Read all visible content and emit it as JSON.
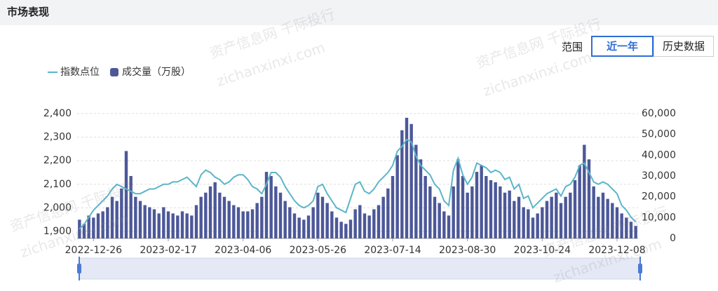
{
  "header": {
    "title": "市场表现"
  },
  "controls": {
    "label": "范围",
    "tabs": [
      "近一年",
      "历史数据"
    ],
    "active": 0
  },
  "watermarks": [
    "资产信息网 千际投行",
    "zichanxinxi.com",
    "资产信息网 千际投行",
    "zichanxinxi.com",
    "资产信息网 千际投行",
    "zichanxinxi.com",
    "资产信息网 千际投行",
    "zichanxinxi.com"
  ],
  "chart_data": {
    "type": "combo",
    "categories": [
      null,
      null,
      null,
      "2022-12-26",
      null,
      null,
      null,
      null,
      null,
      null,
      null,
      null,
      null,
      null,
      null,
      null,
      null,
      null,
      null,
      "2023-02-17",
      null,
      null,
      null,
      null,
      null,
      null,
      null,
      null,
      null,
      null,
      null,
      null,
      null,
      null,
      null,
      "2023-04-06",
      null,
      null,
      null,
      null,
      null,
      null,
      null,
      null,
      null,
      null,
      null,
      null,
      null,
      null,
      null,
      "2023-05-26",
      null,
      null,
      null,
      null,
      null,
      null,
      null,
      null,
      null,
      null,
      null,
      null,
      null,
      null,
      null,
      "2023-07-14",
      null,
      null,
      null,
      null,
      null,
      null,
      null,
      null,
      null,
      null,
      null,
      null,
      null,
      null,
      null,
      "2023-08-30",
      null,
      null,
      null,
      null,
      null,
      null,
      null,
      null,
      null,
      null,
      null,
      null,
      null,
      null,
      null,
      "2023-10-24",
      null,
      null,
      null,
      null,
      null,
      null,
      null,
      null,
      null,
      null,
      null,
      null,
      null,
      null,
      null,
      "2023-12-08",
      null,
      null,
      null,
      null
    ],
    "series": [
      {
        "name": "指数点位",
        "type": "line",
        "color": "#5cb5c9",
        "values": [
          1910,
          1930,
          1960,
          1990,
          2010,
          2030,
          2050,
          2080,
          2100,
          2090,
          2080,
          2070,
          2060,
          2060,
          2070,
          2080,
          2080,
          2090,
          2100,
          2100,
          2110,
          2110,
          2120,
          2130,
          2110,
          2090,
          2140,
          2160,
          2150,
          2130,
          2120,
          2100,
          2110,
          2130,
          2140,
          2140,
          2120,
          2090,
          2080,
          2060,
          2100,
          2150,
          2150,
          2130,
          2090,
          2060,
          2030,
          2010,
          2000,
          2010,
          2030,
          2090,
          2100,
          2060,
          2030,
          2000,
          1990,
          1980,
          2040,
          2100,
          2110,
          2070,
          2060,
          2080,
          2110,
          2130,
          2150,
          2180,
          2240,
          2260,
          2290,
          2280,
          2220,
          2180,
          2160,
          2140,
          2100,
          2080,
          2030,
          2010,
          2160,
          2210,
          2140,
          2100,
          2130,
          2190,
          2180,
          2170,
          2150,
          2160,
          2150,
          2120,
          2130,
          2080,
          2100,
          2040,
          2050,
          2000,
          2020,
          2040,
          2060,
          2070,
          2080,
          2050,
          2090,
          2100,
          2130,
          2180,
          2190,
          2150,
          2110,
          2100,
          2110,
          2100,
          2080,
          2060,
          2010,
          1990,
          1960,
          1940
        ]
      },
      {
        "name": "成交量（万股）",
        "type": "bar",
        "axis": "y2",
        "color": "#4d5899",
        "values": [
          9000,
          7000,
          11000,
          10000,
          12000,
          13000,
          15000,
          20000,
          18000,
          24000,
          42000,
          30000,
          20000,
          18000,
          16000,
          15000,
          14000,
          12000,
          15000,
          13000,
          12000,
          11000,
          13000,
          12000,
          11000,
          16000,
          20000,
          22000,
          25000,
          27000,
          22000,
          20000,
          18000,
          16000,
          15000,
          13000,
          13000,
          14000,
          17000,
          20000,
          32000,
          30000,
          25000,
          22000,
          18000,
          15000,
          12000,
          10000,
          9000,
          11000,
          15000,
          22000,
          20000,
          17000,
          13000,
          10000,
          8000,
          7000,
          9000,
          14000,
          16000,
          12000,
          11000,
          14000,
          16000,
          20000,
          24000,
          30000,
          40000,
          52000,
          58000,
          55000,
          45000,
          38000,
          30000,
          25000,
          20000,
          17000,
          13000,
          11000,
          25000,
          38000,
          30000,
          22000,
          25000,
          32000,
          35000,
          30000,
          28000,
          27000,
          25000,
          22000,
          23000,
          18000,
          20000,
          15000,
          14000,
          10000,
          12000,
          15000,
          18000,
          20000,
          22000,
          17000,
          20000,
          22000,
          28000,
          35000,
          45000,
          38000,
          25000,
          20000,
          22000,
          19000,
          17000,
          15000,
          12000,
          10000,
          8000,
          6000
        ]
      }
    ],
    "ylim": [
      1870,
      2400
    ],
    "yticks": [
      {
        "value": 1900,
        "label": "1,900"
      },
      {
        "value": 2000,
        "label": "2,000"
      },
      {
        "value": 2100,
        "label": "2,100"
      },
      {
        "value": 2200,
        "label": "2,200"
      },
      {
        "value": 2300,
        "label": "2,300"
      },
      {
        "value": 2400,
        "label": "2,400"
      }
    ],
    "y2lim": [
      0,
      60000
    ],
    "y2ticks": [
      0,
      {
        "value": 10000,
        "label": "10,000"
      },
      {
        "value": 20000,
        "label": "20,000"
      },
      {
        "value": 30000,
        "label": "30,000"
      },
      {
        "value": 40000,
        "label": "40,000"
      },
      {
        "value": 50000,
        "label": "50,000"
      },
      {
        "value": 60000,
        "label": "60,000"
      }
    ],
    "grid": true,
    "legend": "top-left"
  }
}
